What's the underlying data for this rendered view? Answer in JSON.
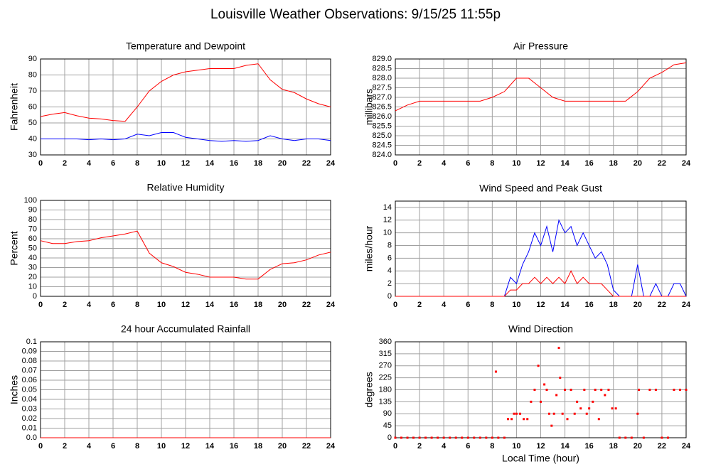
{
  "title": "Louisville Weather Observations: 9/15/25 11:55p",
  "chart_data": [
    {
      "type": "line",
      "title": "Temperature and Dewpoint",
      "y_label": "Fahrenheit",
      "x": [
        0,
        1,
        2,
        3,
        4,
        5,
        6,
        7,
        8,
        9,
        10,
        11,
        12,
        13,
        14,
        15,
        16,
        17,
        18,
        19,
        20,
        21,
        22,
        23,
        24
      ],
      "series": [
        {
          "color": "#ff0000",
          "values": [
            54,
            55.5,
            56.5,
            54.5,
            53,
            52.5,
            51.5,
            51,
            60,
            70,
            76,
            80,
            82,
            83,
            84,
            84,
            84,
            86,
            87,
            77,
            71,
            69,
            65,
            62,
            60
          ]
        },
        {
          "color": "#0000ff",
          "values": [
            40,
            40,
            40,
            40,
            39.5,
            40,
            39.5,
            40,
            43,
            42,
            44,
            44,
            41,
            40,
            39,
            38.5,
            39,
            38.5,
            39,
            42,
            40,
            39,
            40,
            40,
            39
          ]
        }
      ],
      "xlim": [
        0,
        24
      ],
      "xticks": [
        0,
        2,
        4,
        6,
        8,
        10,
        12,
        14,
        16,
        18,
        20,
        22,
        24
      ],
      "ylim": [
        30,
        90
      ],
      "yticks": [
        30,
        40,
        50,
        60,
        70,
        80,
        90
      ],
      "grid": true
    },
    {
      "type": "line",
      "title": "Air Pressure",
      "y_label": "millibars",
      "x": [
        0,
        1,
        2,
        3,
        4,
        5,
        6,
        7,
        8,
        9,
        10,
        11,
        12,
        13,
        14,
        15,
        16,
        17,
        18,
        19,
        20,
        21,
        22,
        23,
        24
      ],
      "series": [
        {
          "color": "#ff0000",
          "values": [
            826.3,
            826.6,
            826.8,
            826.8,
            826.8,
            826.8,
            826.8,
            826.8,
            827.0,
            827.3,
            828.0,
            828.0,
            827.5,
            827.0,
            826.8,
            826.8,
            826.8,
            826.8,
            826.8,
            826.8,
            827.3,
            828.0,
            828.3,
            828.7,
            828.8
          ]
        }
      ],
      "xlim": [
        0,
        24
      ],
      "xticks": [
        0,
        2,
        4,
        6,
        8,
        10,
        12,
        14,
        16,
        18,
        20,
        22,
        24
      ],
      "ylim": [
        824,
        829
      ],
      "yticks": [
        {
          "value": 824,
          "label": "824.0"
        },
        824.5,
        {
          "value": 825,
          "label": "825.0"
        },
        825.5,
        {
          "value": 826,
          "label": "826.0"
        },
        826.5,
        {
          "value": 827,
          "label": "827.0"
        },
        827.5,
        {
          "value": 828,
          "label": "828.0"
        },
        828.5,
        {
          "value": 829,
          "label": "829.0"
        }
      ],
      "grid": true
    },
    {
      "type": "line",
      "title": "Relative Humidity",
      "y_label": "Percent",
      "x": [
        0,
        1,
        2,
        3,
        4,
        5,
        6,
        7,
        8,
        9,
        10,
        11,
        12,
        13,
        14,
        15,
        16,
        17,
        18,
        19,
        20,
        21,
        22,
        23,
        24
      ],
      "series": [
        {
          "color": "#ff0000",
          "values": [
            58,
            55,
            55,
            57,
            58,
            61,
            63,
            65,
            68,
            45,
            35,
            31,
            25,
            23,
            20,
            20,
            20,
            18,
            18,
            28,
            34,
            35,
            38,
            43,
            46
          ]
        }
      ],
      "xlim": [
        0,
        24
      ],
      "xticks": [
        0,
        2,
        4,
        6,
        8,
        10,
        12,
        14,
        16,
        18,
        20,
        22,
        24
      ],
      "ylim": [
        0,
        100
      ],
      "yticks": [
        0,
        10,
        20,
        30,
        40,
        50,
        60,
        70,
        80,
        90,
        100
      ],
      "grid": true
    },
    {
      "type": "line",
      "title": "Wind Speed and Peak Gust",
      "y_label": "miles/hour",
      "x": [
        0,
        0.5,
        1,
        1.5,
        2,
        2.5,
        3,
        3.5,
        4,
        4.5,
        5,
        5.5,
        6,
        6.5,
        7,
        7.5,
        8,
        8.5,
        9,
        9.5,
        10,
        10.5,
        11,
        11.5,
        12,
        12.5,
        13,
        13.5,
        14,
        14.5,
        15,
        15.5,
        16,
        16.5,
        17,
        17.5,
        18,
        18.5,
        19,
        19.5,
        20,
        20.5,
        21,
        21.5,
        22,
        22.5,
        23,
        23.5,
        24
      ],
      "series": [
        {
          "color": "#0000ff",
          "values": [
            0,
            0,
            0,
            0,
            0,
            0,
            0,
            0,
            0,
            0,
            0,
            0,
            0,
            0,
            0,
            0,
            0,
            0,
            0,
            3,
            2,
            5,
            7,
            10,
            8,
            11,
            7,
            12,
            10,
            11,
            8,
            10,
            8,
            6,
            7,
            5,
            1,
            0,
            0,
            0,
            5,
            0,
            0,
            2,
            0,
            0,
            2,
            2,
            0
          ]
        },
        {
          "color": "#ff0000",
          "values": [
            0,
            0,
            0,
            0,
            0,
            0,
            0,
            0,
            0,
            0,
            0,
            0,
            0,
            0,
            0,
            0,
            0,
            0,
            0,
            1,
            1,
            2,
            2,
            3,
            2,
            3,
            2,
            3,
            2,
            4,
            2,
            3,
            2,
            2,
            2,
            1,
            0,
            0,
            0,
            0,
            0,
            0,
            0,
            0,
            0,
            0,
            0,
            0,
            0
          ]
        }
      ],
      "xlim": [
        0,
        24
      ],
      "xticks": [
        0,
        2,
        4,
        6,
        8,
        10,
        12,
        14,
        16,
        18,
        20,
        22,
        24
      ],
      "ylim": [
        0,
        15
      ],
      "yticks": [
        0,
        2,
        4,
        6,
        8,
        10,
        12,
        14
      ],
      "grid": true
    },
    {
      "type": "line",
      "title": "24 hour Accumulated Rainfall",
      "y_label": "Inches",
      "x": [
        0,
        24
      ],
      "series": [
        {
          "color": "#ff0000",
          "values": [
            0,
            0
          ]
        }
      ],
      "xlim": [
        0,
        24
      ],
      "xticks": [
        0,
        2,
        4,
        6,
        8,
        10,
        12,
        14,
        16,
        18,
        20,
        22,
        24
      ],
      "ylim": [
        0,
        0.1
      ],
      "yticks": [
        {
          "value": 0,
          "label": "0.0"
        },
        0.01,
        0.02,
        0.03,
        0.04,
        0.05,
        0.06,
        0.07,
        0.08,
        0.09,
        0.1
      ],
      "grid": true
    },
    {
      "type": "scatter",
      "title": "Wind Direction",
      "y_label": "degrees",
      "x_label": "Local Time (hour)",
      "x": [
        0,
        0.5,
        1,
        1.5,
        2,
        2.5,
        3,
        3.5,
        4,
        4.5,
        5,
        5.5,
        6,
        6.5,
        7,
        7.5,
        8,
        8.3,
        8.5,
        9,
        9.3,
        9.6,
        9.8,
        10,
        10.3,
        10.6,
        10.9,
        11.2,
        11.5,
        11.8,
        12,
        12.3,
        12.5,
        12.7,
        12.9,
        13.1,
        13.3,
        13.5,
        13.6,
        13.8,
        14,
        14.2,
        14.5,
        14.8,
        15,
        15.3,
        15.6,
        15.8,
        16,
        16.3,
        16.5,
        16.8,
        17,
        17.3,
        17.6,
        17.9,
        18.2,
        18.5,
        19,
        19.5,
        20,
        20.1,
        20.5,
        21,
        21.5,
        22,
        22.5,
        23,
        23.5,
        24
      ],
      "series": [
        {
          "color": "#ff0000",
          "values": [
            0,
            0,
            0,
            0,
            0,
            0,
            0,
            0,
            0,
            0,
            0,
            0,
            0,
            0,
            0,
            0,
            0,
            248,
            0,
            0,
            70,
            70,
            90,
            90,
            90,
            70,
            70,
            135,
            180,
            270,
            135,
            200,
            180,
            90,
            45,
            90,
            160,
            337,
            225,
            90,
            180,
            70,
            180,
            90,
            135,
            110,
            180,
            90,
            110,
            135,
            180,
            70,
            180,
            160,
            180,
            110,
            110,
            0,
            0,
            0,
            90,
            180,
            0,
            180,
            180,
            0,
            0,
            180,
            180,
            180
          ]
        }
      ],
      "xlim": [
        0,
        24
      ],
      "xticks": [
        0,
        2,
        4,
        6,
        8,
        10,
        12,
        14,
        16,
        18,
        20,
        22,
        24
      ],
      "ylim": [
        0,
        360
      ],
      "yticks": [
        0,
        45,
        90,
        135,
        180,
        225,
        270,
        315,
        360
      ],
      "grid": true
    }
  ]
}
